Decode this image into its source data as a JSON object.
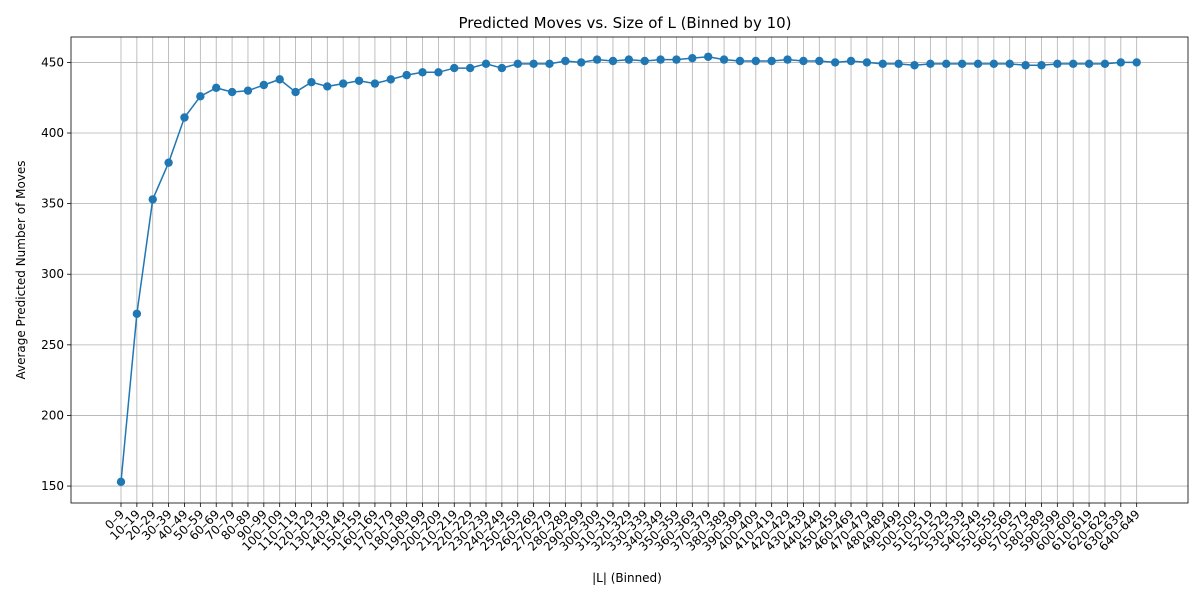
{
  "chart_data": {
    "type": "line",
    "title": "Predicted Moves vs. Size of L (Binned by 10)",
    "xlabel": "|L| (Binned)",
    "ylabel": "Average Predicted Number of Moves",
    "ylim": [
      138,
      468
    ],
    "yticks": [
      150,
      200,
      250,
      300,
      350,
      400,
      450
    ],
    "grid": true,
    "color": "#1f77b4",
    "categories": [
      "0–9",
      "10–19",
      "20–29",
      "30–39",
      "40–49",
      "50–59",
      "60–69",
      "70–79",
      "80–89",
      "90–99",
      "100–109",
      "110–119",
      "120–129",
      "130–139",
      "140–149",
      "150–159",
      "160–169",
      "170–179",
      "180–189",
      "190–199",
      "200–209",
      "210–219",
      "220–229",
      "230–239",
      "240–249",
      "250–259",
      "260–269",
      "270–279",
      "280–289",
      "290–299",
      "300–309",
      "310–319",
      "320–329",
      "330–339",
      "340–349",
      "350–359",
      "360–369",
      "370–379",
      "380–389",
      "390–399",
      "400–409",
      "410–419",
      "420–429",
      "430–439",
      "440–449",
      "450–459",
      "460–469",
      "470–479",
      "480–489",
      "490–499",
      "500–509",
      "510–519",
      "520–529",
      "530–539",
      "540–549",
      "550–559",
      "560–569",
      "570–579",
      "580–589",
      "590–599",
      "600–609",
      "610–619",
      "620–629",
      "630–639",
      "640–649"
    ],
    "values": [
      153,
      272,
      353,
      379,
      411,
      426,
      432,
      429,
      430,
      434,
      438,
      429,
      436,
      433,
      435,
      437,
      435,
      438,
      441,
      443,
      443,
      446,
      446,
      449,
      446,
      449,
      449,
      449,
      451,
      450,
      452,
      451,
      452,
      451,
      452,
      452,
      453,
      454,
      452,
      451,
      451,
      451,
      452,
      451,
      451,
      450,
      451,
      450,
      449,
      449,
      448,
      449,
      449,
      449,
      449,
      449,
      449,
      448,
      448,
      449,
      449,
      449,
      449,
      450,
      450
    ]
  }
}
